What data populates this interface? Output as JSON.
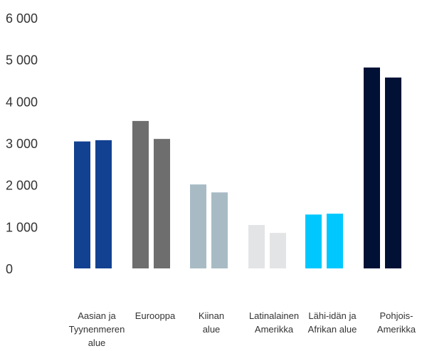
{
  "chart_data": {
    "type": "bar",
    "categories": [
      "Aasian ja Tyynenmeren alue",
      "Eurooppa",
      "Kiinan alue",
      "Latinalainen Amerikka",
      "Lähi-idän ja Afrikan alue",
      "Pohjois-Amerikka"
    ],
    "category_label_lines": [
      [
        "Aasian ja",
        "Tyynenmeren",
        "alue"
      ],
      [
        "Eurooppa"
      ],
      [
        "Kiinan",
        "alue"
      ],
      [
        "Latinalainen",
        "Amerikka"
      ],
      [
        "Lähi-idän ja",
        "Afrikan alue"
      ],
      [
        "Pohjois-",
        "Amerikka"
      ]
    ],
    "series": [
      {
        "values": [
          3040,
          3530,
          2010,
          1040,
          1290,
          4810
        ]
      },
      {
        "values": [
          3070,
          3100,
          1820,
          850,
          1310,
          4570
        ]
      }
    ],
    "bar_colors": [
      [
        "#124191",
        "#124191"
      ],
      [
        "#6e6e6e",
        "#6e6e6e"
      ],
      [
        "#a8bbc5",
        "#a8bbc5"
      ],
      [
        "#e3e4e6",
        "#e3e4e6"
      ],
      [
        "#00c8ff",
        "#00c8ff"
      ],
      [
        "#001135",
        "#001135"
      ]
    ],
    "y_ticks": [
      "0",
      "1 000",
      "2 000",
      "3 000",
      "4 000",
      "5 000",
      "6 000"
    ],
    "y_tick_values": [
      0,
      1000,
      2000,
      3000,
      4000,
      5000,
      6000
    ],
    "ylim": [
      0,
      6000
    ],
    "grid": false,
    "legend": "none",
    "title": "",
    "xlabel": "",
    "ylabel": ""
  }
}
